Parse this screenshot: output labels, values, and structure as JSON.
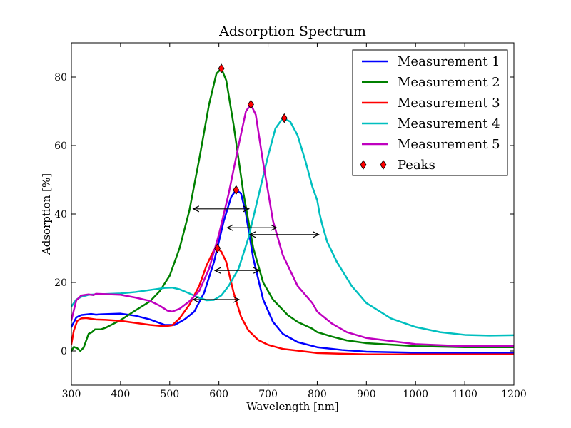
{
  "chart_data": {
    "type": "line",
    "title": "Adsorption Spectrum",
    "xlabel": "Wavelength [nm]",
    "ylabel": "Adsorption [%]",
    "xlim": [
      300,
      1200
    ],
    "ylim": [
      -10,
      90
    ],
    "xticks": [
      300,
      400,
      500,
      600,
      700,
      800,
      900,
      1000,
      1100,
      1200
    ],
    "yticks": [
      0,
      20,
      40,
      60,
      80
    ],
    "grid": false,
    "legend_position": "top-right",
    "series": [
      {
        "name": "Measurement 1",
        "color": "#0000ff",
        "points": [
          [
            300,
            7
          ],
          [
            310,
            9.8
          ],
          [
            320,
            10.5
          ],
          [
            340,
            10.8
          ],
          [
            350,
            10.6
          ],
          [
            360,
            10.7
          ],
          [
            400,
            10.9
          ],
          [
            430,
            10.3
          ],
          [
            460,
            9.2
          ],
          [
            490,
            7.6
          ],
          [
            510,
            7.6
          ],
          [
            530,
            9.2
          ],
          [
            550,
            11.5
          ],
          [
            570,
            17
          ],
          [
            590,
            26
          ],
          [
            610,
            38
          ],
          [
            625,
            45
          ],
          [
            635,
            47
          ],
          [
            645,
            46
          ],
          [
            655,
            40
          ],
          [
            670,
            27
          ],
          [
            690,
            15
          ],
          [
            710,
            8.5
          ],
          [
            730,
            5
          ],
          [
            760,
            2.6
          ],
          [
            800,
            1.1
          ],
          [
            850,
            0.3
          ],
          [
            900,
            -0.2
          ],
          [
            1000,
            -0.5
          ],
          [
            1100,
            -0.6
          ],
          [
            1200,
            -0.6
          ]
        ]
      },
      {
        "name": "Measurement 2",
        "color": "#008000",
        "points": [
          [
            300,
            0
          ],
          [
            305,
            1.2
          ],
          [
            312,
            0.8
          ],
          [
            318,
            0
          ],
          [
            325,
            1
          ],
          [
            335,
            5
          ],
          [
            342,
            5.5
          ],
          [
            348,
            6.3
          ],
          [
            360,
            6.3
          ],
          [
            370,
            6.8
          ],
          [
            400,
            9
          ],
          [
            430,
            11.8
          ],
          [
            460,
            14.5
          ],
          [
            480,
            17.5
          ],
          [
            500,
            22
          ],
          [
            520,
            30
          ],
          [
            540,
            41
          ],
          [
            560,
            56
          ],
          [
            580,
            72
          ],
          [
            595,
            81
          ],
          [
            605,
            82.5
          ],
          [
            615,
            79
          ],
          [
            630,
            66
          ],
          [
            650,
            46
          ],
          [
            670,
            30
          ],
          [
            690,
            20
          ],
          [
            710,
            15
          ],
          [
            740,
            10.5
          ],
          [
            760,
            8.5
          ],
          [
            790,
            6.5
          ],
          [
            800,
            5.5
          ],
          [
            830,
            4.2
          ],
          [
            860,
            3.1
          ],
          [
            900,
            2.3
          ],
          [
            1000,
            1.4
          ],
          [
            1100,
            1.1
          ],
          [
            1200,
            1.1
          ]
        ]
      },
      {
        "name": "Measurement 3",
        "color": "#ff0000",
        "points": [
          [
            300,
            2
          ],
          [
            305,
            6
          ],
          [
            312,
            8.8
          ],
          [
            320,
            9.5
          ],
          [
            330,
            9.6
          ],
          [
            340,
            9.4
          ],
          [
            350,
            9.2
          ],
          [
            370,
            9.1
          ],
          [
            400,
            8.8
          ],
          [
            430,
            8.2
          ],
          [
            460,
            7.6
          ],
          [
            490,
            7.2
          ],
          [
            505,
            7.5
          ],
          [
            520,
            9.5
          ],
          [
            540,
            13.5
          ],
          [
            560,
            19
          ],
          [
            575,
            25
          ],
          [
            590,
            29.5
          ],
          [
            597,
            30
          ],
          [
            605,
            29
          ],
          [
            615,
            26
          ],
          [
            630,
            17
          ],
          [
            645,
            10
          ],
          [
            660,
            6
          ],
          [
            680,
            3.2
          ],
          [
            700,
            1.8
          ],
          [
            730,
            0.6
          ],
          [
            760,
            0.1
          ],
          [
            800,
            -0.6
          ],
          [
            850,
            -0.8
          ],
          [
            900,
            -1
          ],
          [
            1000,
            -1
          ],
          [
            1100,
            -1
          ],
          [
            1200,
            -1
          ]
        ]
      },
      {
        "name": "Measurement 4",
        "color": "#00bfbf",
        "points": [
          [
            300,
            13
          ],
          [
            310,
            15
          ],
          [
            320,
            15.8
          ],
          [
            335,
            16.4
          ],
          [
            350,
            16.5
          ],
          [
            400,
            16.8
          ],
          [
            430,
            17.2
          ],
          [
            460,
            17.8
          ],
          [
            490,
            18.4
          ],
          [
            505,
            18.5
          ],
          [
            520,
            18
          ],
          [
            540,
            16.8
          ],
          [
            560,
            15.5
          ],
          [
            575,
            14.8
          ],
          [
            590,
            14.9
          ],
          [
            605,
            16.2
          ],
          [
            620,
            19
          ],
          [
            640,
            24
          ],
          [
            660,
            33
          ],
          [
            680,
            45
          ],
          [
            700,
            57
          ],
          [
            715,
            65
          ],
          [
            730,
            68
          ],
          [
            745,
            67
          ],
          [
            760,
            63
          ],
          [
            775,
            56
          ],
          [
            790,
            48
          ],
          [
            800,
            44
          ],
          [
            805,
            40
          ],
          [
            810,
            37
          ],
          [
            820,
            32
          ],
          [
            840,
            26
          ],
          [
            870,
            19
          ],
          [
            900,
            14
          ],
          [
            950,
            9.5
          ],
          [
            1000,
            7
          ],
          [
            1050,
            5.5
          ],
          [
            1100,
            4.7
          ],
          [
            1150,
            4.5
          ],
          [
            1200,
            4.6
          ]
        ]
      },
      {
        "name": "Measurement 5",
        "color": "#bf00bf",
        "points": [
          [
            300,
            9
          ],
          [
            310,
            14.8
          ],
          [
            320,
            16.2
          ],
          [
            335,
            16.5
          ],
          [
            345,
            16.3
          ],
          [
            350,
            16.7
          ],
          [
            400,
            16.4
          ],
          [
            430,
            15.6
          ],
          [
            460,
            14.6
          ],
          [
            480,
            13.2
          ],
          [
            495,
            11.8
          ],
          [
            505,
            11.5
          ],
          [
            520,
            12.3
          ],
          [
            540,
            14.5
          ],
          [
            560,
            17.5
          ],
          [
            580,
            24
          ],
          [
            600,
            34
          ],
          [
            620,
            46
          ],
          [
            640,
            60
          ],
          [
            655,
            70
          ],
          [
            665,
            72
          ],
          [
            675,
            69
          ],
          [
            690,
            55
          ],
          [
            710,
            38
          ],
          [
            730,
            28
          ],
          [
            760,
            19
          ],
          [
            790,
            14
          ],
          [
            800,
            11.5
          ],
          [
            830,
            8
          ],
          [
            860,
            5.5
          ],
          [
            900,
            3.8
          ],
          [
            1000,
            2
          ],
          [
            1100,
            1.4
          ],
          [
            1200,
            1.4
          ]
        ]
      }
    ],
    "peaks": {
      "name": "Peaks",
      "color": "#ff0000",
      "points": [
        [
          635,
          47
        ],
        [
          605,
          82.5
        ],
        [
          597,
          30
        ],
        [
          733,
          68
        ],
        [
          665,
          72
        ]
      ]
    },
    "fwhm_arrows": [
      {
        "x1": 617,
        "x2": 717,
        "y": 36,
        "color": "#0000ff"
      },
      {
        "x1": 548,
        "x2": 661,
        "y": 41.5,
        "color": "#008000"
      },
      {
        "x1": 548,
        "x2": 641,
        "y": 15,
        "color": "#ff0000"
      },
      {
        "x1": 663,
        "x2": 803,
        "y": 34,
        "color": "#00bfbf"
      },
      {
        "x1": 592,
        "x2": 682,
        "y": 23.5,
        "color": "#bf00bf"
      }
    ]
  }
}
